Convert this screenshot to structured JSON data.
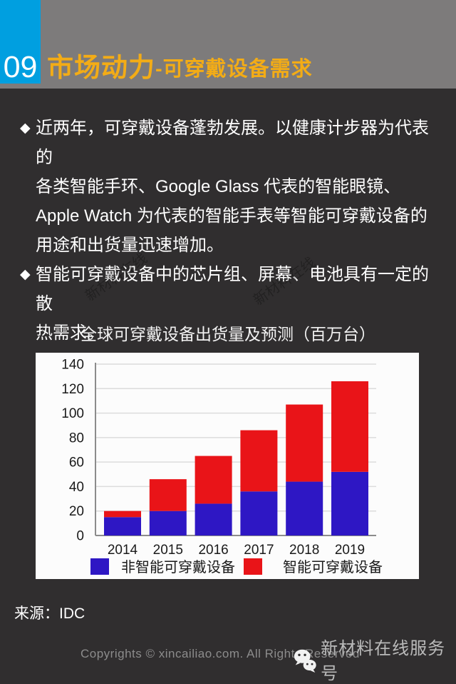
{
  "header": {
    "number": "09",
    "number_bg": "#009FE0",
    "band_bg": "#7D7B7B",
    "title_main": "市场动力",
    "title_sub": "-可穿戴设备需求",
    "title_color": "#F3AC16"
  },
  "bullets": [
    {
      "marker": "◆",
      "text": "近两年，可穿戴设备蓬勃发展。以健康计步器为代表的\n各类智能手环、Google Glass 代表的智能眼镜、\nApple Watch 为代表的智能手表等智能可穿戴设备的\n用途和出货量迅速增加。"
    },
    {
      "marker": "◆",
      "text": "智能可穿戴设备中的芯片组、屏幕、电池具有一定的散\n热需求。"
    }
  ],
  "chart_data": {
    "type": "bar",
    "stacked": true,
    "title": "全球可穿戴设备出货量及预测（百万台）",
    "categories": [
      "2014",
      "2015",
      "2016",
      "2017",
      "2018",
      "2019"
    ],
    "series": [
      {
        "name": "非智能可穿戴设备",
        "color": "#2E17C4",
        "values": [
          15,
          20,
          26,
          36,
          44,
          52
        ]
      },
      {
        "name": "智能可穿戴设备",
        "color": "#E91418",
        "values": [
          5,
          26,
          39,
          50,
          63,
          74
        ]
      }
    ],
    "totals": [
      20,
      46,
      65,
      86,
      107,
      126
    ],
    "ylim": [
      0,
      140
    ],
    "yticks": [
      0,
      20,
      40,
      60,
      80,
      100,
      120,
      140
    ],
    "grid": true,
    "legend_position": "bottom",
    "panel_bg": "#FCFCFC",
    "grid_color": "#DCDCDC",
    "spine_color": "#8C8C8C",
    "text_color": "#1A1A1A"
  },
  "source": "来源：IDC",
  "footer": {
    "copyright": "Copyrights © xincailiao.com. All Rights Reserved",
    "wechat_name": "新材料在线服务号"
  },
  "watermark": {
    "diagonal": "新材料在线"
  }
}
